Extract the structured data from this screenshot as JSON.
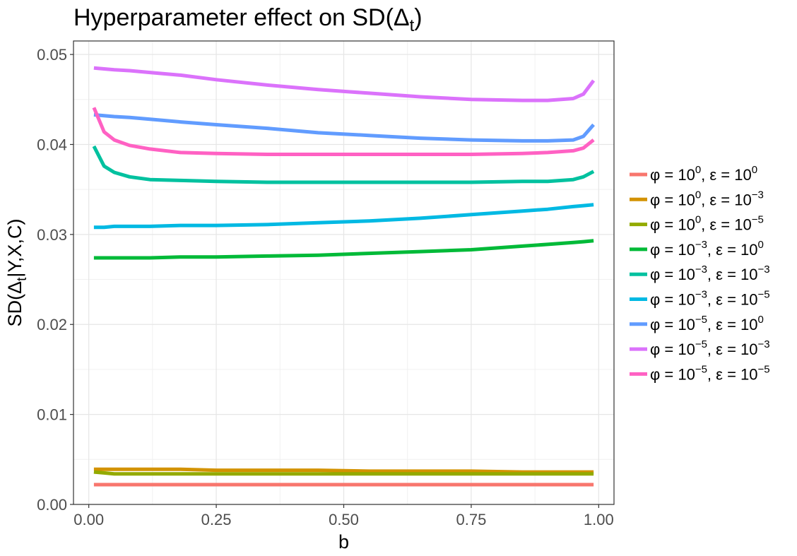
{
  "chart_data": {
    "type": "line",
    "title": "Hyperparameter effect on SD(Δ",
    "title_sub": "t",
    "title_close": ")",
    "xlabel": "b",
    "ylabel": {
      "pre": "SD(Δ",
      "sub": "t",
      "post": "|Y,X,C)"
    },
    "xlim": [
      -0.03,
      1.03
    ],
    "ylim": [
      0,
      0.0515
    ],
    "x_ticks": [
      0,
      0.25,
      0.5,
      0.75,
      1
    ],
    "x_tick_labels": [
      "0.00",
      "0.25",
      "0.50",
      "0.75",
      "1.00"
    ],
    "y_ticks": [
      0,
      0.01,
      0.02,
      0.03,
      0.04,
      0.05
    ],
    "y_tick_labels": [
      "0.00",
      "0.01",
      "0.02",
      "0.03",
      "0.04",
      "0.05"
    ],
    "grid": true,
    "legend_position": "right",
    "x": [
      0.01,
      0.03,
      0.05,
      0.08,
      0.12,
      0.18,
      0.25,
      0.35,
      0.45,
      0.55,
      0.65,
      0.75,
      0.85,
      0.9,
      0.95,
      0.97,
      0.99
    ],
    "series": [
      {
        "name": "φ = 10^0, ε = 10^0",
        "phi_exp": "0",
        "eps_exp": "0",
        "color": "#F8766D",
        "values": [
          0.0022,
          0.0022,
          0.0022,
          0.0022,
          0.0022,
          0.0022,
          0.0022,
          0.0022,
          0.0022,
          0.0022,
          0.0022,
          0.0022,
          0.0022,
          0.0022,
          0.0022,
          0.0022,
          0.0022
        ]
      },
      {
        "name": "φ = 10^0, ε = 10^-3",
        "phi_exp": "0",
        "eps_exp": "−3",
        "color": "#D39200",
        "values": [
          0.0039,
          0.0039,
          0.0039,
          0.0039,
          0.0039,
          0.0039,
          0.0038,
          0.0038,
          0.0038,
          0.0037,
          0.0037,
          0.0037,
          0.0036,
          0.0036,
          0.0036,
          0.0036,
          0.0036
        ]
      },
      {
        "name": "φ = 10^0, ε = 10^-5",
        "phi_exp": "0",
        "eps_exp": "−5",
        "color": "#93AA00",
        "values": [
          0.0036,
          0.0035,
          0.0034,
          0.0034,
          0.0034,
          0.0034,
          0.0034,
          0.0034,
          0.0034,
          0.0034,
          0.0034,
          0.0034,
          0.0034,
          0.0034,
          0.0034,
          0.0034,
          0.0034
        ]
      },
      {
        "name": "φ = 10^-3, ε = 10^0",
        "phi_exp": "−3",
        "eps_exp": "0",
        "color": "#00BA38",
        "values": [
          0.0274,
          0.0274,
          0.0274,
          0.0274,
          0.0274,
          0.0275,
          0.0275,
          0.0276,
          0.0277,
          0.0279,
          0.0281,
          0.0283,
          0.0287,
          0.0289,
          0.0291,
          0.0292,
          0.0293
        ]
      },
      {
        "name": "φ = 10^-3, ε = 10^-3",
        "phi_exp": "−3",
        "eps_exp": "−3",
        "color": "#00C19F",
        "values": [
          0.0398,
          0.0376,
          0.0369,
          0.0364,
          0.0361,
          0.036,
          0.0359,
          0.0358,
          0.0358,
          0.0358,
          0.0358,
          0.0358,
          0.0359,
          0.0359,
          0.0361,
          0.0364,
          0.037
        ]
      },
      {
        "name": "φ = 10^-3, ε = 10^-5",
        "phi_exp": "−3",
        "eps_exp": "−5",
        "color": "#00B9E3",
        "values": [
          0.0308,
          0.0308,
          0.0309,
          0.0309,
          0.0309,
          0.031,
          0.031,
          0.0311,
          0.0313,
          0.0315,
          0.0318,
          0.0322,
          0.0326,
          0.0328,
          0.0331,
          0.0332,
          0.0333
        ]
      },
      {
        "name": "φ = 10^-5, ε = 10^0",
        "phi_exp": "−5",
        "eps_exp": "0",
        "color": "#619CFF",
        "values": [
          0.0433,
          0.0432,
          0.0431,
          0.043,
          0.0428,
          0.0425,
          0.0422,
          0.0418,
          0.0413,
          0.041,
          0.0407,
          0.0405,
          0.0404,
          0.0404,
          0.0405,
          0.0409,
          0.0422
        ]
      },
      {
        "name": "φ = 10^-5, ε = 10^-3",
        "phi_exp": "−5",
        "eps_exp": "−3",
        "color": "#DB72FB",
        "values": [
          0.0485,
          0.0484,
          0.0483,
          0.0482,
          0.048,
          0.0477,
          0.0472,
          0.0466,
          0.0461,
          0.0457,
          0.0453,
          0.045,
          0.0449,
          0.0449,
          0.0451,
          0.0456,
          0.0471
        ]
      },
      {
        "name": "φ = 10^-5, ε = 10^-5",
        "phi_exp": "−5",
        "eps_exp": "−5",
        "color": "#FF61C3",
        "values": [
          0.0441,
          0.0414,
          0.0405,
          0.0399,
          0.0395,
          0.0391,
          0.039,
          0.0389,
          0.0389,
          0.0389,
          0.0389,
          0.0389,
          0.039,
          0.0391,
          0.0393,
          0.0396,
          0.0405
        ]
      }
    ]
  }
}
